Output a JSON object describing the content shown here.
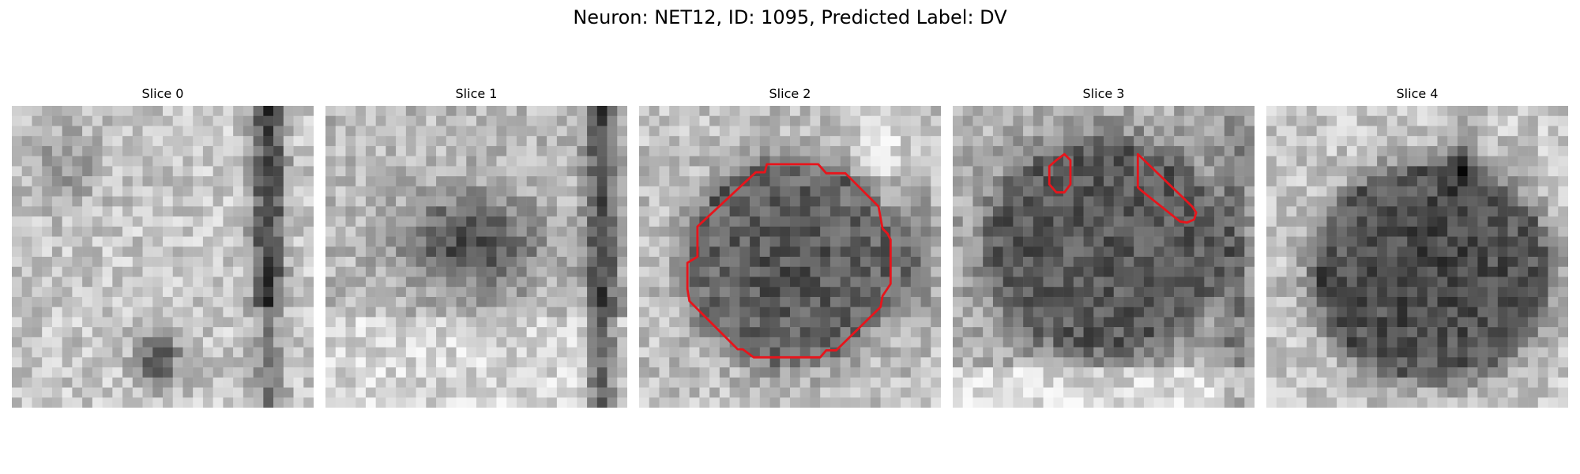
{
  "figure": {
    "title": "Neuron: NET12, ID: 1095, Predicted Label: DV"
  },
  "panels": [
    {
      "title": "Slice 0",
      "has_contour": false
    },
    {
      "title": "Slice 1",
      "has_contour": false
    },
    {
      "title": "Slice 2",
      "has_contour": true
    },
    {
      "title": "Slice 3",
      "has_contour": true
    },
    {
      "title": "Slice 4",
      "has_contour": false
    }
  ],
  "colors": {
    "contour": "#e8141b",
    "background": "#ffffff"
  },
  "image_description_tag": "grayscale-microscopy-tiles"
}
